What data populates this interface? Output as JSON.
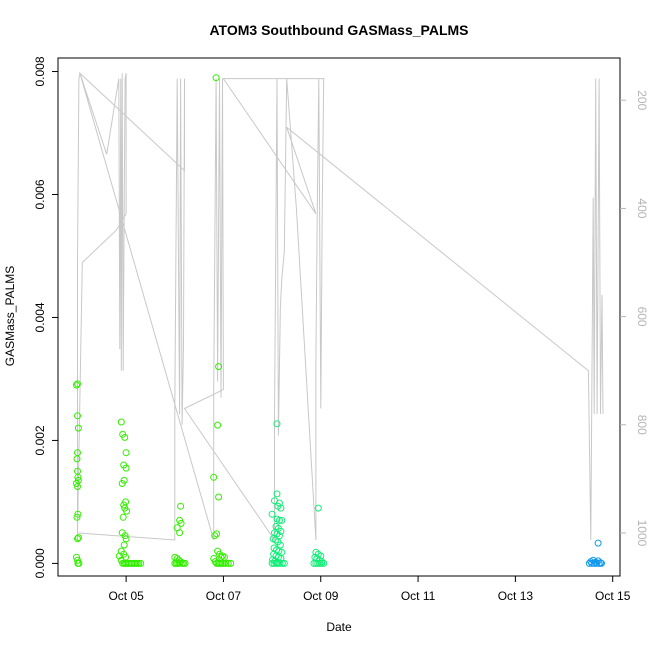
{
  "chart_data": {
    "type": "scatter",
    "title": "ATOM3 Southbound GASMass_PALMS",
    "xlabel": "Date",
    "ylabel": "GASMass_PALMS",
    "xlim": [
      3.6,
      15.15
    ],
    "ylim": [
      -0.000205,
      0.00822
    ],
    "y2lim": [
      1079.6,
      121.9
    ],
    "x_ticks": [
      {
        "v": 5,
        "label": "Oct 05"
      },
      {
        "v": 7,
        "label": "Oct 07"
      },
      {
        "v": 9,
        "label": "Oct 09"
      },
      {
        "v": 11,
        "label": "Oct 11"
      },
      {
        "v": 13,
        "label": "Oct 13"
      },
      {
        "v": 15,
        "label": "Oct 15"
      }
    ],
    "y_ticks": [
      {
        "v": 0.0,
        "label": "0.000"
      },
      {
        "v": 0.002,
        "label": "0.002"
      },
      {
        "v": 0.004,
        "label": "0.004"
      },
      {
        "v": 0.006,
        "label": "0.006"
      },
      {
        "v": 0.008,
        "label": "0.008"
      }
    ],
    "y2_ticks": [
      {
        "v": 200,
        "label": "200"
      },
      {
        "v": 400,
        "label": "400"
      },
      {
        "v": 600,
        "label": "600"
      },
      {
        "v": 800,
        "label": "800"
      },
      {
        "v": 1000,
        "label": "1000"
      }
    ],
    "colors": {
      "pressure_line": "#c8c8c8",
      "grey_ticks": "#b4b4b4"
    },
    "pressure_series": [
      [
        4.0,
        1013
      ],
      [
        4.0,
        500
      ],
      [
        4.03,
        160
      ],
      [
        4.05,
        150
      ],
      [
        4.6,
        300
      ],
      [
        4.85,
        160
      ],
      [
        4.87,
        660
      ],
      [
        4.89,
        160
      ],
      [
        4.9,
        700
      ],
      [
        4.92,
        150
      ],
      [
        4.94,
        700
      ],
      [
        4.96,
        400
      ],
      [
        4.98,
        160
      ],
      [
        5.0,
        150
      ],
      [
        5.0,
        410
      ],
      [
        4.8,
        440
      ],
      [
        4.1,
        500
      ],
      [
        4.0,
        1000
      ],
      [
        6.0,
        1013
      ],
      [
        6.0,
        770
      ],
      [
        6.05,
        160
      ],
      [
        6.1,
        780
      ],
      [
        6.12,
        160
      ],
      [
        6.15,
        800
      ],
      [
        6.18,
        650
      ],
      [
        6.2,
        160
      ],
      [
        6.2,
        330
      ],
      [
        4.05,
        150
      ],
      [
        6.8,
        1013
      ],
      [
        6.8,
        740
      ],
      [
        6.85,
        160
      ],
      [
        6.88,
        720
      ],
      [
        6.92,
        160
      ],
      [
        6.95,
        750
      ],
      [
        6.98,
        160
      ],
      [
        7.0,
        735
      ],
      [
        6.2,
        770
      ],
      [
        8.05,
        1013
      ],
      [
        8.05,
        790
      ],
      [
        8.1,
        160
      ],
      [
        8.13,
        820
      ],
      [
        8.17,
        580
      ],
      [
        8.2,
        530
      ],
      [
        8.25,
        480
      ],
      [
        8.3,
        160
      ],
      [
        8.5,
        400
      ],
      [
        8.9,
        1013
      ],
      [
        8.9,
        680
      ],
      [
        8.93,
        400
      ],
      [
        8.96,
        160
      ],
      [
        9.0,
        770
      ],
      [
        9.03,
        410
      ],
      [
        9.06,
        160
      ],
      [
        7.0,
        160
      ],
      [
        8.9,
        410
      ],
      [
        8.3,
        250
      ],
      [
        14.5,
        700
      ],
      [
        14.55,
        1013
      ],
      [
        14.6,
        380
      ],
      [
        14.62,
        780
      ],
      [
        14.65,
        160
      ],
      [
        14.68,
        780
      ],
      [
        14.72,
        160
      ],
      [
        14.75,
        780
      ],
      [
        14.78,
        560
      ],
      [
        14.8,
        780
      ]
    ],
    "series": [
      {
        "color": "#33ee00",
        "points": [
          [
            3.98,
            0.0029
          ],
          [
            4.0,
            0.00292
          ],
          [
            4.0,
            0.0024
          ],
          [
            4.02,
            0.0022
          ],
          [
            4.0,
            0.0018
          ],
          [
            3.99,
            0.0017
          ],
          [
            4.0,
            0.0015
          ],
          [
            4.01,
            0.0014
          ],
          [
            3.98,
            0.0013
          ],
          [
            4.02,
            0.00135
          ],
          [
            4.0,
            0.00125
          ],
          [
            4.01,
            0.0008
          ],
          [
            3.99,
            0.00075
          ],
          [
            4.0,
            0.0004
          ],
          [
            4.02,
            0.00042
          ],
          [
            3.98,
            0.0001
          ],
          [
            4.0,
            5e-05
          ],
          [
            4.01,
            0.0
          ],
          [
            4.03,
            0.0
          ],
          [
            4.9,
            0.0023
          ],
          [
            4.93,
            0.0021
          ],
          [
            4.97,
            0.00205
          ],
          [
            5.0,
            0.0018
          ],
          [
            4.95,
            0.0016
          ],
          [
            5.0,
            0.00155
          ],
          [
            4.92,
            0.0013
          ],
          [
            4.96,
            0.00135
          ],
          [
            4.99,
            0.001
          ],
          [
            4.95,
            0.00095
          ],
          [
            4.97,
            0.0009
          ],
          [
            5.01,
            0.00085
          ],
          [
            4.94,
            0.00075
          ],
          [
            4.92,
            0.0005
          ],
          [
            4.98,
            0.00045
          ],
          [
            5.0,
            0.0004
          ],
          [
            4.96,
            0.0003
          ],
          [
            4.9,
            0.0002
          ],
          [
            4.95,
            0.00015
          ],
          [
            4.99,
            0.0001
          ],
          [
            4.86,
            0.00012
          ],
          [
            4.9,
            5e-05
          ],
          [
            4.93,
            0.0
          ],
          [
            4.96,
            0.0
          ],
          [
            4.99,
            0.0
          ],
          [
            5.02,
            0.0
          ],
          [
            5.05,
            0.0
          ],
          [
            5.08,
            0.0
          ],
          [
            5.11,
            0.0
          ],
          [
            5.14,
            0.0
          ],
          [
            5.17,
            0.0
          ],
          [
            5.2,
            0.0
          ],
          [
            5.23,
            0.0
          ],
          [
            5.26,
            0.0
          ],
          [
            5.3,
            0.0
          ],
          [
            6.12,
            0.00093
          ],
          [
            6.1,
            0.0007
          ],
          [
            6.13,
            0.00065
          ],
          [
            6.05,
            0.00058
          ],
          [
            6.1,
            0.0005
          ],
          [
            6.0,
            0.0001
          ],
          [
            6.05,
            8e-05
          ],
          [
            6.08,
            5e-05
          ],
          [
            6.12,
            3e-05
          ],
          [
            6.15,
            0.0
          ],
          [
            6.0,
            0.0
          ],
          [
            6.03,
            0.0
          ],
          [
            6.06,
            0.0
          ],
          [
            6.09,
            0.0
          ],
          [
            6.18,
            0.0
          ],
          [
            6.21,
            0.0
          ],
          [
            6.85,
            0.0079
          ],
          [
            6.9,
            0.0032
          ],
          [
            6.88,
            0.00225
          ],
          [
            6.8,
            0.0014
          ],
          [
            6.9,
            0.00108
          ],
          [
            6.82,
            0.00045
          ],
          [
            6.86,
            0.00048
          ],
          [
            6.88,
            0.0002
          ],
          [
            6.92,
            0.00015
          ],
          [
            6.95,
            0.0001
          ],
          [
            6.98,
            0.00012
          ],
          [
            7.02,
            0.0001
          ],
          [
            6.8,
            8e-05
          ],
          [
            6.83,
            3e-05
          ],
          [
            6.86,
            0.0
          ],
          [
            6.89,
            0.0
          ],
          [
            6.92,
            0.0
          ],
          [
            6.95,
            0.0
          ],
          [
            6.98,
            0.0
          ],
          [
            7.01,
            0.0
          ],
          [
            7.05,
            0.0
          ],
          [
            7.1,
            0.0
          ],
          [
            7.15,
            0.0
          ]
        ]
      },
      {
        "color": "#11ee77",
        "points": [
          [
            8.1,
            0.00227
          ],
          [
            8.1,
            0.00113
          ],
          [
            8.15,
            0.00098
          ],
          [
            8.05,
            0.00102
          ],
          [
            8.12,
            0.00093
          ],
          [
            8.18,
            0.0009
          ],
          [
            8.0,
            0.0008
          ],
          [
            8.1,
            0.00072
          ],
          [
            8.15,
            0.0007
          ],
          [
            8.2,
            0.0007
          ],
          [
            8.08,
            0.0006
          ],
          [
            8.13,
            0.00057
          ],
          [
            8.18,
            0.00052
          ],
          [
            8.05,
            0.0005
          ],
          [
            8.1,
            0.00048
          ],
          [
            8.15,
            0.00045
          ],
          [
            8.02,
            0.0004
          ],
          [
            8.07,
            0.00038
          ],
          [
            8.12,
            0.00035
          ],
          [
            8.17,
            0.0003
          ],
          [
            8.04,
            0.00025
          ],
          [
            8.09,
            0.00022
          ],
          [
            8.14,
            0.0002
          ],
          [
            8.2,
            0.00018
          ],
          [
            8.03,
            0.00015
          ],
          [
            8.08,
            0.00012
          ],
          [
            8.13,
            0.0001
          ],
          [
            8.18,
            8e-05
          ],
          [
            8.01,
            6e-05
          ],
          [
            8.06,
            4e-05
          ],
          [
            8.11,
            2e-05
          ],
          [
            8.16,
            0.0
          ],
          [
            8.21,
            0.0
          ],
          [
            8.0,
            0.0
          ],
          [
            8.04,
            0.0
          ],
          [
            8.08,
            0.0
          ],
          [
            8.12,
            0.0
          ],
          [
            8.25,
            0.0
          ],
          [
            8.95,
            0.0009
          ],
          [
            8.9,
            0.00018
          ],
          [
            8.95,
            0.00015
          ],
          [
            9.0,
            0.00012
          ],
          [
            8.88,
            0.0001
          ],
          [
            8.92,
            8e-05
          ],
          [
            8.97,
            5e-05
          ],
          [
            9.02,
            3e-05
          ],
          [
            8.86,
            0.0
          ],
          [
            8.9,
            0.0
          ],
          [
            8.94,
            0.0
          ],
          [
            8.98,
            0.0
          ],
          [
            9.02,
            0.0
          ],
          [
            9.06,
            0.0
          ]
        ]
      },
      {
        "color": "#1199ee",
        "points": [
          [
            14.7,
            0.00033
          ],
          [
            14.55,
            3e-05
          ],
          [
            14.6,
            5e-05
          ],
          [
            14.65,
            2e-05
          ],
          [
            14.7,
            4e-05
          ],
          [
            14.75,
            1e-05
          ],
          [
            14.52,
            0.0
          ],
          [
            14.57,
            0.0
          ],
          [
            14.62,
            0.0
          ],
          [
            14.67,
            0.0
          ],
          [
            14.72,
            0.0
          ],
          [
            14.77,
            0.0
          ]
        ]
      }
    ]
  }
}
